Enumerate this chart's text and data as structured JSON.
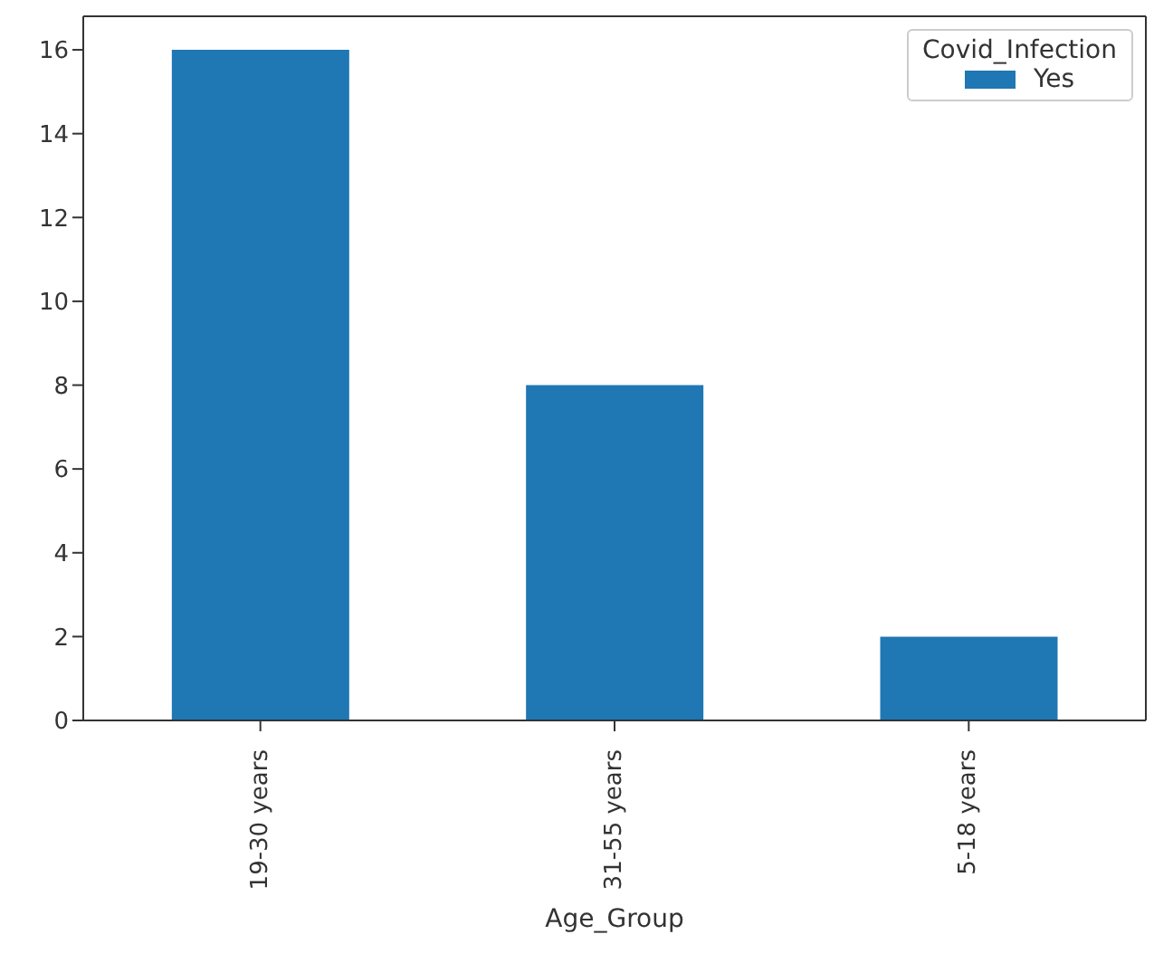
{
  "chart_data": {
    "type": "bar",
    "xlabel": "Age_Group",
    "legend_title": "Covid_Infection",
    "categories": [
      "19-30 years",
      "31-55 years",
      "5-18 years"
    ],
    "series": [
      {
        "name": "Yes",
        "color": "#1f77b4",
        "values": [
          16,
          8,
          2
        ]
      }
    ],
    "ylim": [
      0,
      16.8
    ],
    "yticks": [
      0,
      2,
      4,
      6,
      8,
      10,
      12,
      14,
      16
    ],
    "grid": false,
    "legend": "top right"
  }
}
